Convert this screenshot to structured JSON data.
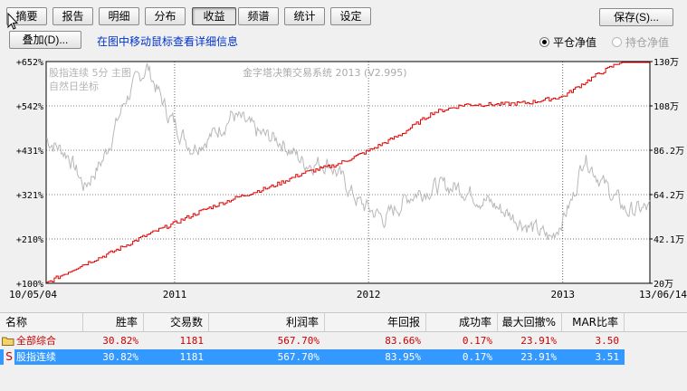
{
  "toolbar": {
    "tabs": [
      "摘要",
      "报告",
      "明细",
      "分布",
      "收益",
      "频谱",
      "统计",
      "设定"
    ],
    "active_tab": "收益",
    "save_label": "保存(S)...",
    "overlay_label": "叠加(D)...",
    "hint": "在图中移动鼠标查看详细信息",
    "radio_close": "平仓净值",
    "radio_hold": "持仓净值"
  },
  "chart": {
    "watermark": "金字塔决策交易系统 2013 (V2.995)",
    "series_title": "股指连续 5分 主图",
    "subtitle": "自然日坐标",
    "left_ticks": [
      "+652%",
      "+542%",
      "+431%",
      "+321%",
      "+210%",
      "+100%"
    ],
    "right_ticks": [
      "130万",
      "108万",
      "86.2万",
      "64.2万",
      "42.1万",
      "20万"
    ],
    "x_start": "10/05/04",
    "x_end": "13/06/14",
    "year_labels": [
      "2011",
      "2012",
      "2013"
    ]
  },
  "chart_data": {
    "type": "line",
    "x_range": [
      "2010-05-04",
      "2013-06-14"
    ],
    "ylim_left_pct": [
      100,
      652
    ],
    "ylim_right_wan": [
      20,
      130
    ],
    "series": [
      {
        "name": "平仓净值",
        "color": "#e00000",
        "x": [
          "2010-05-04",
          "2010-07-01",
          "2010-09-01",
          "2010-11-01",
          "2011-01-01",
          "2011-03-01",
          "2011-05-01",
          "2011-07-01",
          "2011-09-01",
          "2011-11-01",
          "2012-01-01",
          "2012-03-01",
          "2012-05-01",
          "2012-07-01",
          "2012-09-01",
          "2012-11-01",
          "2013-01-01",
          "2013-03-01",
          "2013-05-01",
          "2013-06-14"
        ],
        "values": [
          100,
          140,
          175,
          215,
          250,
          285,
          315,
          340,
          375,
          395,
          430,
          470,
          525,
          545,
          545,
          550,
          565,
          615,
          660,
          665
        ]
      },
      {
        "name": "股指连续",
        "color": "#b8b8b8",
        "x": [
          "2010-05-04",
          "2010-06-15",
          "2010-07-15",
          "2010-08-20",
          "2010-10-01",
          "2010-11-10",
          "2010-12-20",
          "2011-02-01",
          "2011-03-15",
          "2011-04-20",
          "2011-06-10",
          "2011-07-20",
          "2011-09-01",
          "2011-10-20",
          "2011-12-15",
          "2012-02-01",
          "2012-03-20",
          "2012-05-05",
          "2012-06-20",
          "2012-08-10",
          "2012-09-25",
          "2012-11-20",
          "2012-12-10",
          "2013-01-20",
          "2013-02-10",
          "2013-03-20",
          "2013-05-01",
          "2013-06-14"
        ],
        "values": [
          460,
          420,
          340,
          410,
          560,
          640,
          520,
          440,
          470,
          520,
          470,
          455,
          400,
          400,
          300,
          260,
          320,
          340,
          340,
          305,
          270,
          225,
          210,
          310,
          420,
          345,
          280,
          285
        ]
      }
    ],
    "xlabel": "",
    "ylabel": "",
    "grid": true
  },
  "table": {
    "headers": [
      "名称",
      "胜率",
      "交易数",
      "利润率",
      "年回报",
      "成功率",
      "最大回撤%",
      "MAR比率"
    ],
    "rows": [
      {
        "icon": "folder-icon",
        "name": "全部综合",
        "win": "30.82%",
        "trades": "1181",
        "profit": "567.70%",
        "annual": "83.66%",
        "success": "0.17%",
        "drawdown": "23.91%",
        "mar": "3.50"
      },
      {
        "icon": "S",
        "name": "股指连续",
        "win": "30.82%",
        "trades": "1181",
        "profit": "567.70%",
        "annual": "83.95%",
        "success": "0.17%",
        "drawdown": "23.91%",
        "mar": "3.51"
      }
    ]
  }
}
